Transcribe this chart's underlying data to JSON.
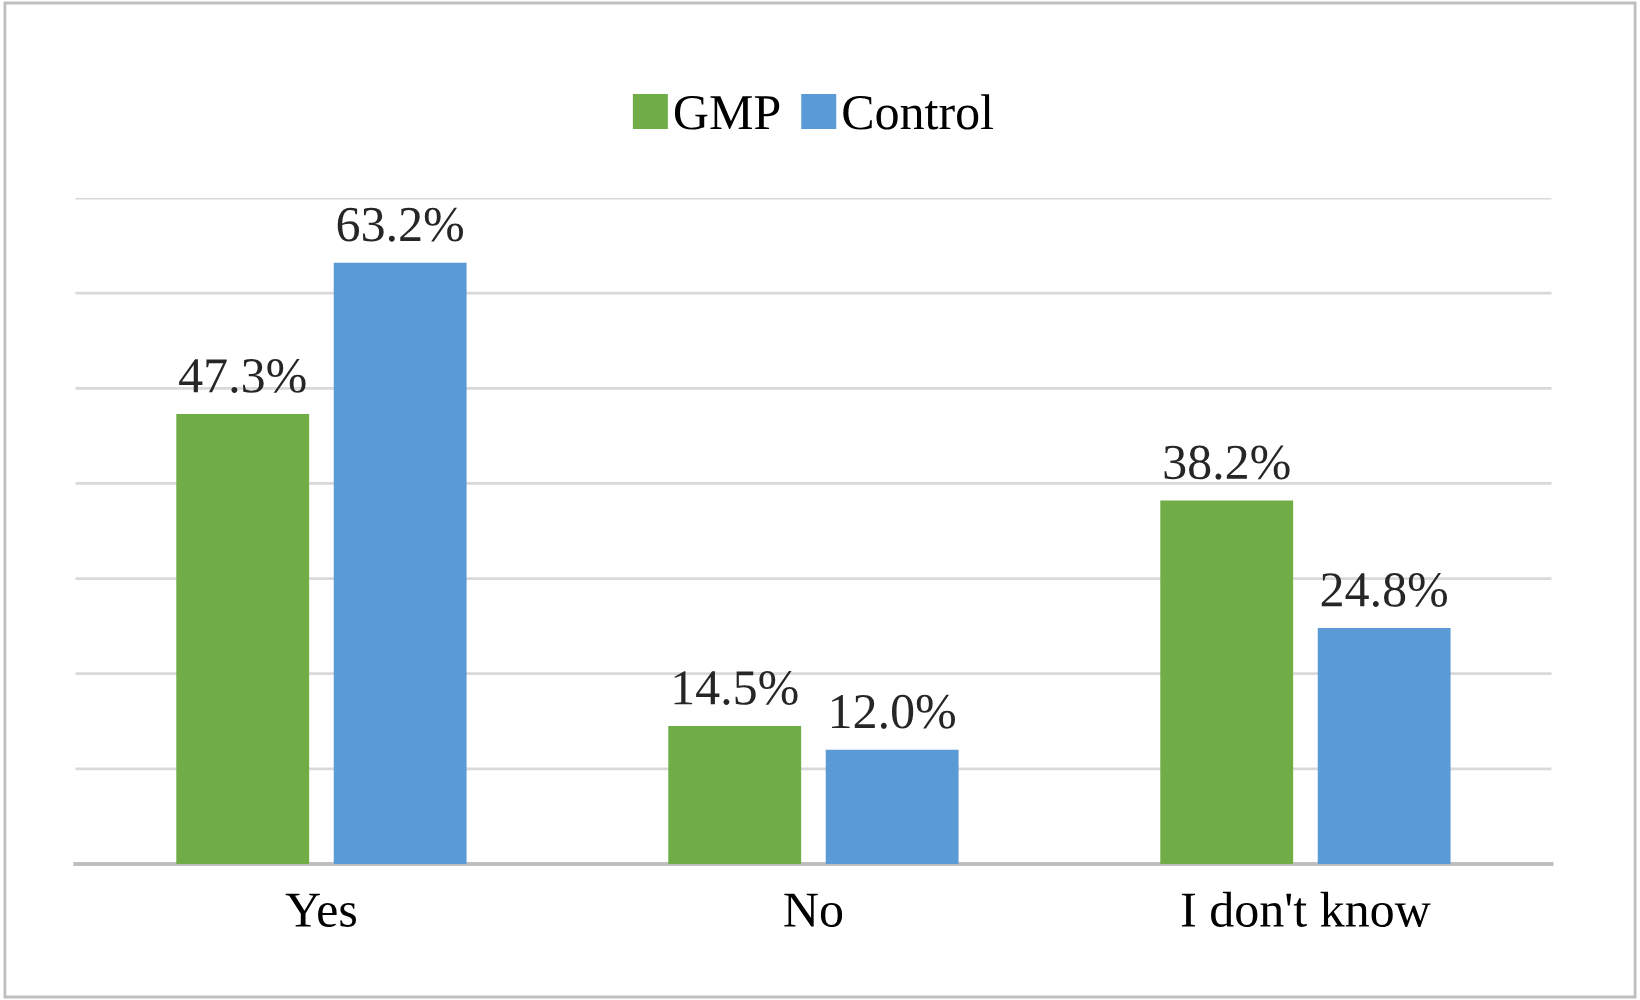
{
  "chart_data": {
    "type": "bar",
    "categories": [
      "Yes",
      "No",
      "I don't know"
    ],
    "series": [
      {
        "name": "GMP",
        "color": "#70ad47",
        "values": [
          47.3,
          14.5,
          38.2
        ],
        "value_labels": [
          "47.3%",
          "14.5%",
          "38.2%"
        ]
      },
      {
        "name": "Control",
        "color": "#5b9bd5",
        "values": [
          63.2,
          12.0,
          24.8
        ],
        "value_labels": [
          "63.2%",
          "12.0%",
          "24.8%"
        ]
      }
    ],
    "ylim": [
      0,
      70
    ],
    "yticks": [
      {
        "value": 0,
        "label": null
      },
      {
        "value": 10,
        "label": null
      },
      {
        "value": 20,
        "label": null
      },
      {
        "value": 30,
        "label": null
      },
      {
        "value": 40,
        "label": null
      },
      {
        "value": 50,
        "label": null
      },
      {
        "value": 60,
        "label": null
      },
      {
        "value": 70,
        "label": null
      }
    ],
    "tick_labels": "x",
    "grid": "y",
    "legend": "top"
  }
}
